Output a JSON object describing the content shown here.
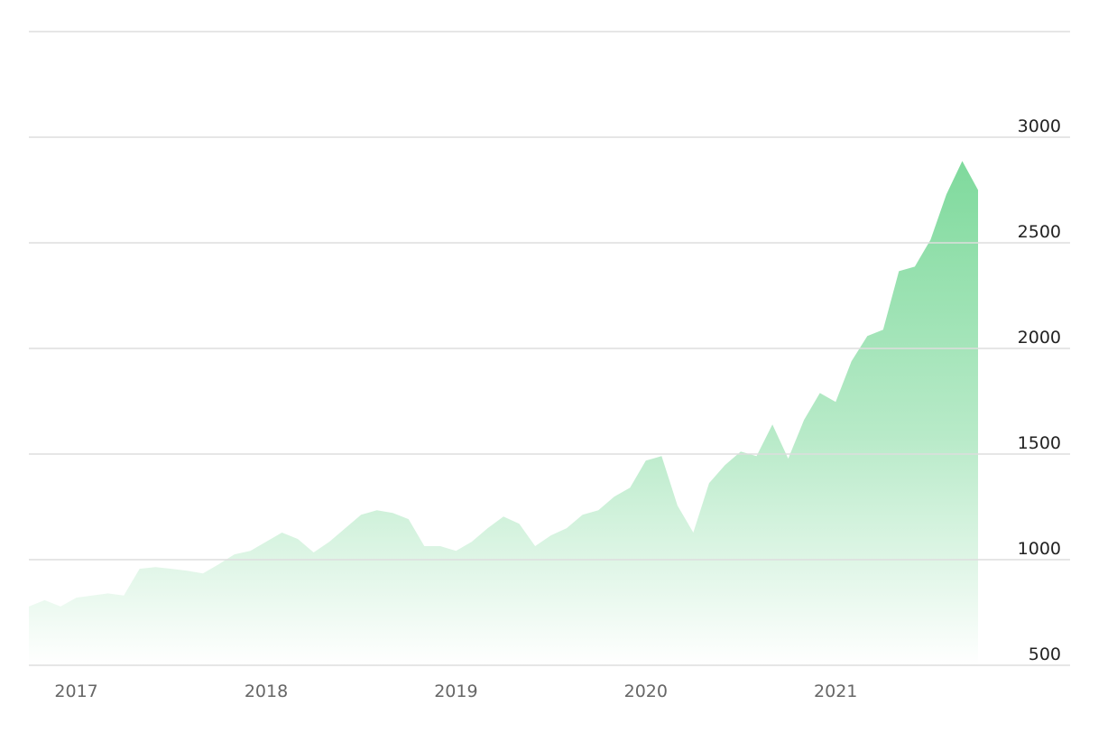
{
  "chart_data": {
    "type": "area",
    "categories": [
      null,
      null,
      null,
      "2017",
      null,
      null,
      null,
      null,
      null,
      null,
      null,
      null,
      null,
      null,
      null,
      "2018",
      null,
      null,
      null,
      null,
      null,
      null,
      null,
      null,
      null,
      null,
      null,
      "2019",
      null,
      null,
      null,
      null,
      null,
      null,
      null,
      null,
      null,
      null,
      null,
      "2020",
      null,
      null,
      null,
      null,
      null,
      null,
      null,
      null,
      null,
      null,
      null,
      "2021",
      null,
      null,
      null,
      null,
      null,
      null,
      null,
      null,
      null
    ],
    "values": [
      778,
      808,
      778,
      820,
      830,
      840,
      830,
      957,
      965,
      957,
      948,
      935,
      978,
      1025,
      1042,
      1085,
      1128,
      1098,
      1034,
      1085,
      1149,
      1213,
      1234,
      1221,
      1192,
      1064,
      1064,
      1042,
      1085,
      1149,
      1204,
      1170,
      1064,
      1115,
      1149,
      1213,
      1234,
      1298,
      1341,
      1469,
      1490,
      1256,
      1128,
      1362,
      1448,
      1512,
      1490,
      1640,
      1478,
      1661,
      1789,
      1747,
      1939,
      2059,
      2089,
      2366,
      2387,
      2515,
      2729,
      2887,
      2750
    ],
    "color": "#7dd99b",
    "ylim": [
      500,
      3500
    ],
    "yticks": [
      500,
      1000,
      1500,
      2000,
      2500,
      3000
    ],
    "grid": true
  }
}
